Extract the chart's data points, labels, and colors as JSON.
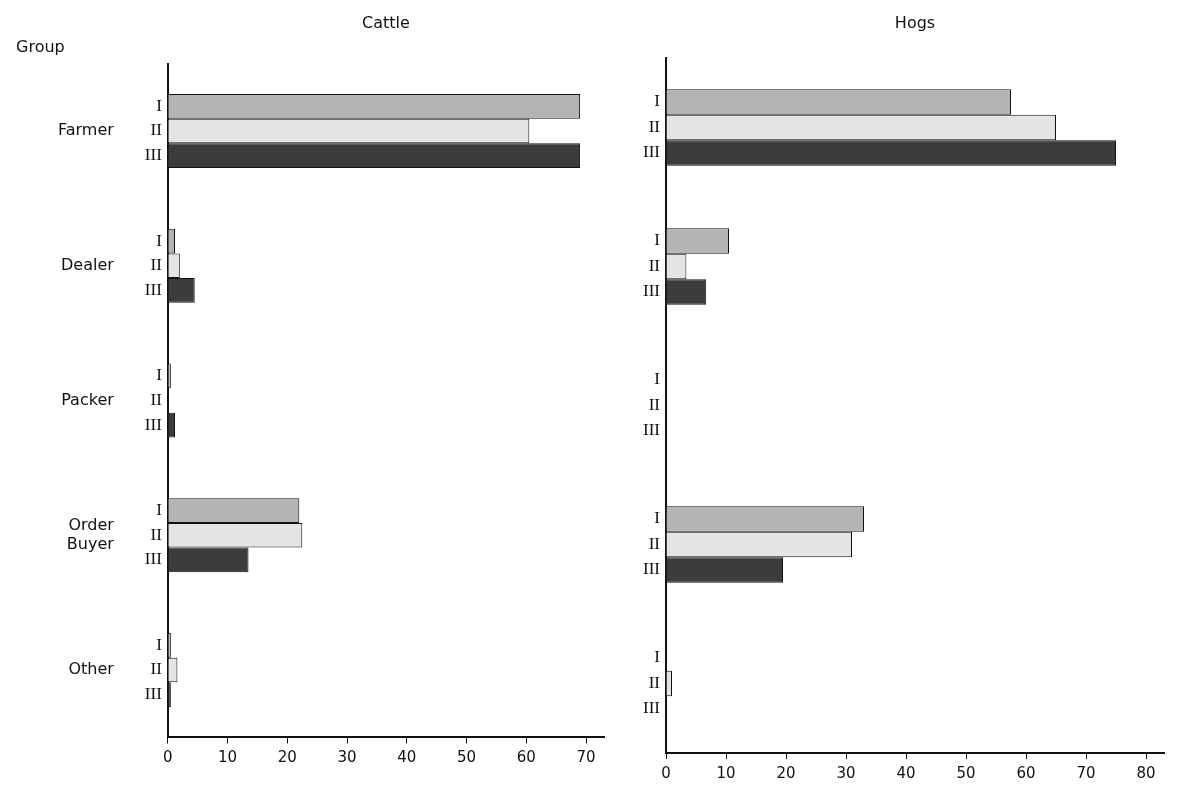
{
  "chart_data": [
    {
      "type": "bar",
      "orientation": "horizontal",
      "title": "Cattle",
      "ylabel": "Group",
      "categories": [
        "Farmer",
        "Dealer",
        "Packer",
        "Order Buyer",
        "Other"
      ],
      "series": [
        {
          "name": "I",
          "color": "#b4b4b4",
          "values": [
            69,
            1.2,
            0.5,
            22,
            0.5
          ]
        },
        {
          "name": "II",
          "color": "#e4e4e4",
          "values": [
            60.5,
            2,
            null,
            22.5,
            1.6
          ]
        },
        {
          "name": "III",
          "color": "#3c3c3c",
          "values": [
            69,
            4.5,
            1.2,
            13.5,
            0.5
          ]
        }
      ],
      "xlim": [
        0,
        73
      ],
      "xticks": [
        0,
        10,
        20,
        30,
        40,
        50,
        60,
        70
      ],
      "grid": false,
      "legend": false
    },
    {
      "type": "bar",
      "orientation": "horizontal",
      "title": "Hogs",
      "categories": [
        null,
        null,
        null,
        null,
        null
      ],
      "series": [
        {
          "name": "I",
          "color": "#b4b4b4",
          "values": [
            57.5,
            10.5,
            0,
            33,
            0
          ]
        },
        {
          "name": "II",
          "color": "#e4e4e4",
          "values": [
            65,
            3.4,
            0,
            31,
            1
          ]
        },
        {
          "name": "III",
          "color": "#3c3c3c",
          "values": [
            75,
            6.7,
            0,
            19.5,
            0
          ]
        }
      ],
      "xlim": [
        0,
        83
      ],
      "xticks": [
        0,
        10,
        20,
        30,
        40,
        50,
        60,
        70,
        80
      ],
      "grid": false,
      "legend": false,
      "tick_labels": "x"
    }
  ]
}
